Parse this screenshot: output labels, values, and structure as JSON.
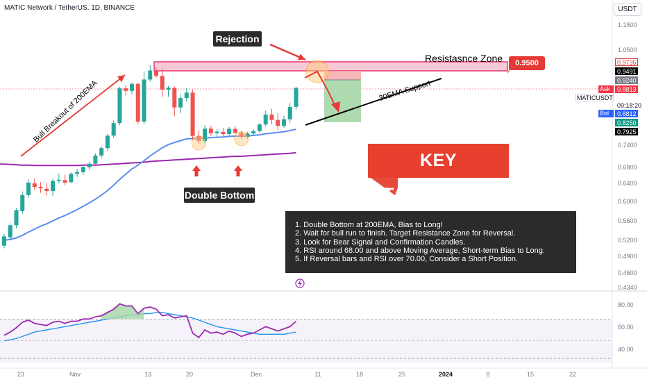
{
  "header": {
    "symbol_title": "MATIC Network / TetherUS, 1D, BINANCE",
    "currency_button": "USDT"
  },
  "annotations": {
    "rejection": "Rejection",
    "double_bottom": "Double Bottom",
    "resistance_zone": "Resistasnce Zone",
    "resistance_price": "0.9500",
    "ema_support": "30EMA Support",
    "bull_breakout": "Bull Breakout of 200EMA",
    "key_takeaways": "KEY TAKEAWAYS",
    "takeaways": [
      "1. Double Bottom at 200EMA, Bias to Long!",
      "2. Wait for bull run to finish. Target Resistance Zone for Reversal.",
      "3. Look for Bear Signal and Confirmation Candles.",
      "4. RSI around 68.00 and above Moving Average, Short-term Bias to Long.",
      "5. If Reversal bars and RSI over 70.00, Consider a Short Position."
    ]
  },
  "price_scale": {
    "labels": [
      "1.1500",
      "1.0500",
      "0.7400",
      "0.6800",
      "0.6400",
      "0.6000",
      "0.5600",
      "0.5200",
      "0.4900",
      "0.4600",
      "0.4340"
    ],
    "tags": [
      {
        "text": "0.9735",
        "bg": "#ffffff",
        "fg": "#e53935",
        "border": "#e53935"
      },
      {
        "text": "0.9491",
        "bg": "#000000",
        "fg": "#ffffff",
        "border": "#000000"
      },
      {
        "text": "0.9240",
        "bg": "#787b86",
        "fg": "#ffffff",
        "border": "#787b86"
      },
      {
        "text": "0.8813",
        "bg": "#f23645",
        "fg": "#ffffff",
        "border": "#f23645"
      },
      {
        "text": "09:18:20",
        "bg": "#ffffff",
        "fg": "#131722",
        "border": "#ffffff"
      },
      {
        "text": "0.8812",
        "bg": "#2962ff",
        "fg": "#ffffff",
        "border": "#2962ff"
      },
      {
        "text": "0.8250",
        "bg": "#089981",
        "fg": "#ffffff",
        "border": "#089981"
      },
      {
        "text": "0.7925",
        "bg": "#000000",
        "fg": "#ffffff",
        "border": "#000000"
      }
    ],
    "ask_label": "Ask",
    "bid_label": "Bid",
    "symbol_tag": "MATICUSDT"
  },
  "rsi_scale": [
    "80.00",
    "60.00",
    "40.00"
  ],
  "time_axis": [
    "23",
    "Nov",
    "13",
    "20",
    "Dec",
    "11",
    "18",
    "25",
    "2024",
    "8",
    "15",
    "22"
  ],
  "colors": {
    "up": "#26a69a",
    "down": "#ef5350",
    "ema30": "#5b8def",
    "ema200": "#9c27b0",
    "rsi": "#9c27b0",
    "rsi_ma": "#2196f3",
    "zone_fill": "#f8c4d2",
    "zone_border": "#e91e63"
  },
  "chart_data": {
    "type": "candlestick",
    "y_range": [
      0.434,
      1.15
    ],
    "candles": [
      {
        "o": 0.51,
        "h": 0.533,
        "l": 0.505,
        "c": 0.528
      },
      {
        "o": 0.526,
        "h": 0.555,
        "l": 0.52,
        "c": 0.551
      },
      {
        "o": 0.551,
        "h": 0.586,
        "l": 0.545,
        "c": 0.582
      },
      {
        "o": 0.58,
        "h": 0.622,
        "l": 0.575,
        "c": 0.614
      },
      {
        "o": 0.614,
        "h": 0.65,
        "l": 0.608,
        "c": 0.642
      },
      {
        "o": 0.64,
        "h": 0.652,
        "l": 0.626,
        "c": 0.632
      },
      {
        "o": 0.632,
        "h": 0.643,
        "l": 0.619,
        "c": 0.629
      },
      {
        "o": 0.628,
        "h": 0.64,
        "l": 0.613,
        "c": 0.623
      },
      {
        "o": 0.623,
        "h": 0.652,
        "l": 0.612,
        "c": 0.646
      },
      {
        "o": 0.646,
        "h": 0.665,
        "l": 0.64,
        "c": 0.649
      },
      {
        "o": 0.648,
        "h": 0.662,
        "l": 0.636,
        "c": 0.642
      },
      {
        "o": 0.643,
        "h": 0.668,
        "l": 0.64,
        "c": 0.664
      },
      {
        "o": 0.664,
        "h": 0.676,
        "l": 0.656,
        "c": 0.668
      },
      {
        "o": 0.668,
        "h": 0.688,
        "l": 0.661,
        "c": 0.681
      },
      {
        "o": 0.68,
        "h": 0.695,
        "l": 0.674,
        "c": 0.69
      },
      {
        "o": 0.69,
        "h": 0.718,
        "l": 0.684,
        "c": 0.712
      },
      {
        "o": 0.712,
        "h": 0.738,
        "l": 0.705,
        "c": 0.732
      },
      {
        "o": 0.732,
        "h": 0.782,
        "l": 0.725,
        "c": 0.776
      },
      {
        "o": 0.776,
        "h": 0.828,
        "l": 0.768,
        "c": 0.822
      },
      {
        "o": 0.822,
        "h": 0.892,
        "l": 0.814,
        "c": 0.884
      },
      {
        "o": 0.884,
        "h": 0.899,
        "l": 0.87,
        "c": 0.878
      },
      {
        "o": 0.878,
        "h": 0.912,
        "l": 0.872,
        "c": 0.905
      },
      {
        "o": 0.905,
        "h": 0.912,
        "l": 0.817,
        "c": 0.826
      },
      {
        "o": 0.826,
        "h": 0.948,
        "l": 0.818,
        "c": 0.925
      },
      {
        "o": 0.925,
        "h": 0.965,
        "l": 0.915,
        "c": 0.95
      },
      {
        "o": 0.948,
        "h": 0.958,
        "l": 0.93,
        "c": 0.935
      },
      {
        "o": 0.935,
        "h": 0.955,
        "l": 0.868,
        "c": 0.88
      },
      {
        "o": 0.88,
        "h": 0.896,
        "l": 0.868,
        "c": 0.887
      },
      {
        "o": 0.886,
        "h": 0.893,
        "l": 0.835,
        "c": 0.85
      },
      {
        "o": 0.85,
        "h": 0.872,
        "l": 0.84,
        "c": 0.866
      },
      {
        "o": 0.866,
        "h": 0.885,
        "l": 0.86,
        "c": 0.875
      },
      {
        "o": 0.875,
        "h": 0.88,
        "l": 0.76,
        "c": 0.775
      },
      {
        "o": 0.775,
        "h": 0.795,
        "l": 0.745,
        "c": 0.755
      },
      {
        "o": 0.755,
        "h": 0.815,
        "l": 0.748,
        "c": 0.802
      },
      {
        "o": 0.802,
        "h": 0.812,
        "l": 0.775,
        "c": 0.785
      },
      {
        "o": 0.785,
        "h": 0.8,
        "l": 0.77,
        "c": 0.791
      },
      {
        "o": 0.79,
        "h": 0.805,
        "l": 0.774,
        "c": 0.782
      },
      {
        "o": 0.782,
        "h": 0.808,
        "l": 0.776,
        "c": 0.801
      },
      {
        "o": 0.801,
        "h": 0.81,
        "l": 0.782,
        "c": 0.787
      },
      {
        "o": 0.787,
        "h": 0.795,
        "l": 0.762,
        "c": 0.771
      },
      {
        "o": 0.771,
        "h": 0.79,
        "l": 0.764,
        "c": 0.784
      },
      {
        "o": 0.784,
        "h": 0.8,
        "l": 0.778,
        "c": 0.793
      },
      {
        "o": 0.793,
        "h": 0.823,
        "l": 0.787,
        "c": 0.817
      },
      {
        "o": 0.817,
        "h": 0.845,
        "l": 0.81,
        "c": 0.838
      },
      {
        "o": 0.838,
        "h": 0.848,
        "l": 0.818,
        "c": 0.829
      },
      {
        "o": 0.829,
        "h": 0.84,
        "l": 0.795,
        "c": 0.812
      },
      {
        "o": 0.812,
        "h": 0.836,
        "l": 0.805,
        "c": 0.83
      },
      {
        "o": 0.83,
        "h": 0.858,
        "l": 0.823,
        "c": 0.851
      },
      {
        "o": 0.851,
        "h": 0.892,
        "l": 0.846,
        "c": 0.886
      }
    ],
    "ema30": [
      0.52,
      0.522,
      0.525,
      0.53,
      0.537,
      0.543,
      0.549,
      0.554,
      0.56,
      0.566,
      0.571,
      0.577,
      0.583,
      0.59,
      0.597,
      0.605,
      0.614,
      0.624,
      0.636,
      0.65,
      0.663,
      0.676,
      0.686,
      0.698,
      0.711,
      0.722,
      0.733,
      0.742,
      0.75,
      0.757,
      0.764,
      0.765,
      0.765,
      0.767,
      0.768,
      0.77,
      0.771,
      0.773,
      0.774,
      0.774,
      0.775,
      0.777,
      0.779,
      0.783,
      0.786,
      0.788,
      0.791,
      0.795,
      0.8
    ],
    "ema200": [
      0.689,
      0.688,
      0.687,
      0.686,
      0.686,
      0.685,
      0.685,
      0.685,
      0.685,
      0.685,
      0.685,
      0.685,
      0.685,
      0.686,
      0.686,
      0.686,
      0.687,
      0.688,
      0.689,
      0.69,
      0.691,
      0.692,
      0.693,
      0.694,
      0.696,
      0.697,
      0.698,
      0.699,
      0.7,
      0.701,
      0.702,
      0.703,
      0.704,
      0.705,
      0.706,
      0.707,
      0.708,
      0.709,
      0.71,
      0.71,
      0.711,
      0.712,
      0.713,
      0.714,
      0.715,
      0.716,
      0.717,
      0.718,
      0.72
    ],
    "rsi": [
      55,
      58,
      62,
      67,
      69,
      66,
      65,
      64,
      67,
      68,
      66,
      68,
      68,
      70,
      70,
      72,
      73,
      76,
      79,
      84,
      82,
      82,
      75,
      80,
      81,
      79,
      73,
      74,
      71,
      72,
      73,
      57,
      53,
      60,
      57,
      58,
      56,
      59,
      57,
      54,
      56,
      57,
      60,
      63,
      61,
      59,
      61,
      63,
      68
    ],
    "rsi_ma": [
      50,
      51,
      52,
      54,
      56,
      58,
      59,
      60,
      61,
      62,
      63,
      64,
      65,
      66,
      67,
      68,
      69,
      70,
      71,
      72,
      73,
      74,
      74,
      75,
      75,
      76,
      76,
      75,
      74,
      73,
      72,
      71,
      69,
      67,
      65,
      63,
      62,
      61,
      60,
      59,
      58,
      57,
      56,
      56,
      56,
      56,
      56,
      57,
      58
    ],
    "rsi_range": [
      30,
      90
    ],
    "rsi_levels": [
      70,
      50
    ]
  }
}
